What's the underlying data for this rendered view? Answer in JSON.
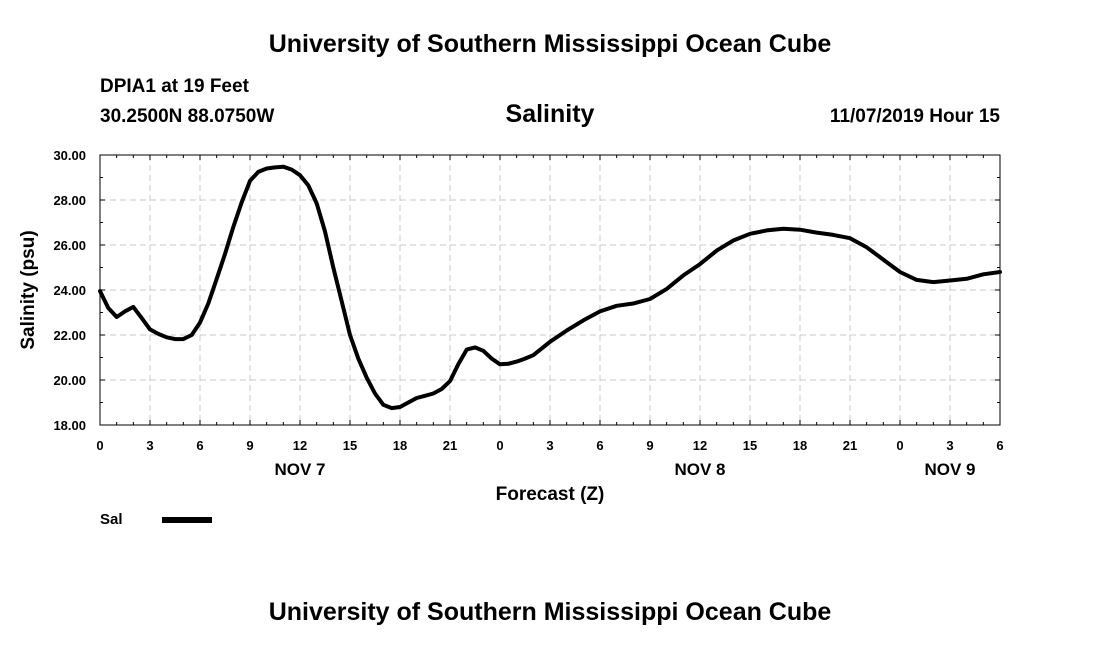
{
  "header": {
    "title": "University of Southern Mississippi Ocean Cube",
    "station": "DPIA1 at 19 Feet",
    "coordinates": "30.2500N 88.0750W",
    "datetime": "11/07/2019 Hour 15"
  },
  "footer": {
    "title": "University of Southern Mississippi Ocean Cube"
  },
  "colors": {
    "line": "#000000",
    "grid": "#c8c8c8"
  },
  "chart_data": {
    "type": "line",
    "title": "Salinity",
    "xlabel": "Forecast (Z)",
    "ylabel": "Salinity (psu)",
    "xlim": [
      0,
      54
    ],
    "ylim": [
      18,
      30
    ],
    "x_units": "forecast hours from NOV 7 00Z",
    "x_tick_values": [
      0,
      3,
      6,
      9,
      12,
      15,
      18,
      21,
      24,
      27,
      30,
      33,
      36,
      39,
      42,
      45,
      48,
      51,
      54
    ],
    "x_tick_labels": [
      "0",
      "3",
      "6",
      "9",
      "12",
      "15",
      "18",
      "21",
      "0",
      "3",
      "6",
      "9",
      "12",
      "15",
      "18",
      "21",
      "0",
      "3",
      "6"
    ],
    "y_tick_values": [
      18,
      20,
      22,
      24,
      26,
      28,
      30
    ],
    "y_tick_labels": [
      "18.00",
      "20.00",
      "22.00",
      "24.00",
      "26.00",
      "28.00",
      "30.00"
    ],
    "date_labels": [
      {
        "x": 12,
        "label": "NOV 7"
      },
      {
        "x": 36,
        "label": "NOV 8"
      },
      {
        "x": 51,
        "label": "NOV 9"
      }
    ],
    "grid": true,
    "legend": {
      "position": "bottom-left",
      "entries": [
        {
          "name": "Sal"
        }
      ]
    },
    "series": [
      {
        "name": "Sal",
        "x": [
          0,
          0.5,
          1,
          1.5,
          2,
          2.5,
          3,
          3.5,
          4,
          4.5,
          5,
          5.5,
          6,
          6.5,
          7,
          7.5,
          8,
          8.5,
          9,
          9.5,
          10,
          10.5,
          11,
          11.5,
          12,
          12.5,
          13,
          13.5,
          14,
          14.5,
          15,
          15.5,
          16,
          16.5,
          17,
          17.5,
          18,
          18.5,
          19,
          19.5,
          20,
          20.5,
          21,
          21.5,
          22,
          22.5,
          23,
          23.5,
          24,
          24.5,
          25,
          25.5,
          26,
          27,
          28,
          29,
          30,
          31,
          32,
          33,
          34,
          35,
          36,
          37,
          38,
          39,
          40,
          41,
          42,
          43,
          44,
          45,
          46,
          47,
          48,
          49,
          50,
          51,
          52,
          53,
          54
        ],
        "values": [
          23.95,
          23.2,
          22.8,
          23.05,
          23.25,
          22.75,
          22.25,
          22.05,
          21.9,
          21.82,
          21.82,
          22.0,
          22.55,
          23.4,
          24.5,
          25.6,
          26.8,
          27.9,
          28.85,
          29.25,
          29.4,
          29.45,
          29.48,
          29.35,
          29.1,
          28.65,
          27.85,
          26.6,
          25.0,
          23.5,
          22.0,
          20.95,
          20.1,
          19.4,
          18.9,
          18.75,
          18.8,
          19.0,
          19.2,
          19.3,
          19.4,
          19.6,
          19.95,
          20.7,
          21.35,
          21.45,
          21.3,
          20.95,
          20.7,
          20.72,
          20.82,
          20.95,
          21.1,
          21.7,
          22.2,
          22.65,
          23.05,
          23.3,
          23.4,
          23.6,
          24.05,
          24.65,
          25.15,
          25.75,
          26.2,
          26.5,
          26.65,
          26.72,
          26.68,
          26.55,
          26.45,
          26.3,
          25.9,
          25.35,
          24.8,
          24.45,
          24.35,
          24.42,
          24.5,
          24.7,
          24.8
        ]
      }
    ]
  }
}
